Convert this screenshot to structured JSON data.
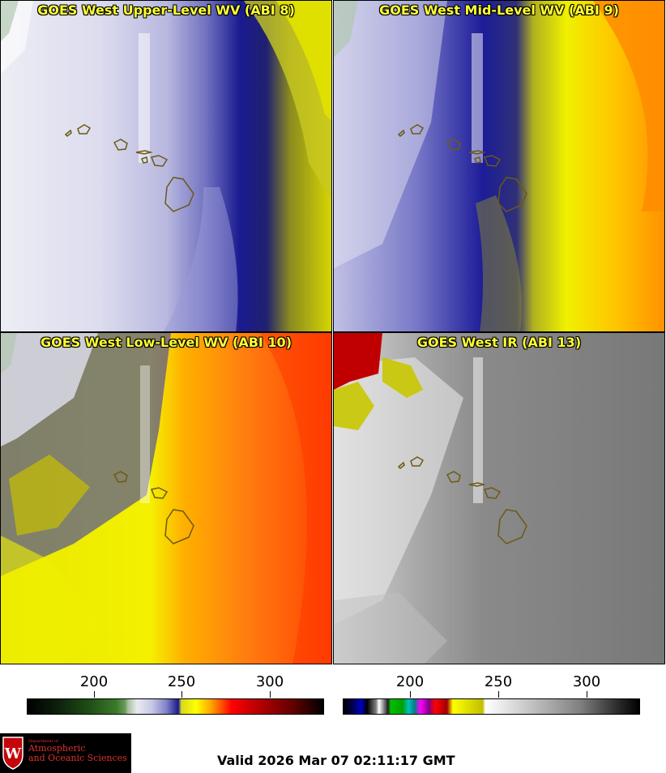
{
  "panels": [
    {
      "title": "GOES West Upper-Level WV (ABI 8)"
    },
    {
      "title": "GOES West Mid-Level WV (ABI 9)"
    },
    {
      "title": "GOES West Low-Level WV (ABI 10)"
    },
    {
      "title": "GOES West IR (ABI 13)"
    }
  ],
  "colorbars": {
    "wv": {
      "ticks": [
        "200",
        "250",
        "300"
      ]
    },
    "ir": {
      "ticks": [
        "200",
        "250",
        "300"
      ]
    }
  },
  "logo": {
    "line1": "Department of",
    "line2": "Atmospheric",
    "line3": "and Oceanic Sciences",
    "crest_letter": "W"
  },
  "footer": {
    "valid": "Valid 2026 Mar 07 02:11:17 GMT"
  },
  "colors": {
    "title": "#ffff33",
    "coast": "#6b5a14",
    "logo_red": "#e03030"
  }
}
